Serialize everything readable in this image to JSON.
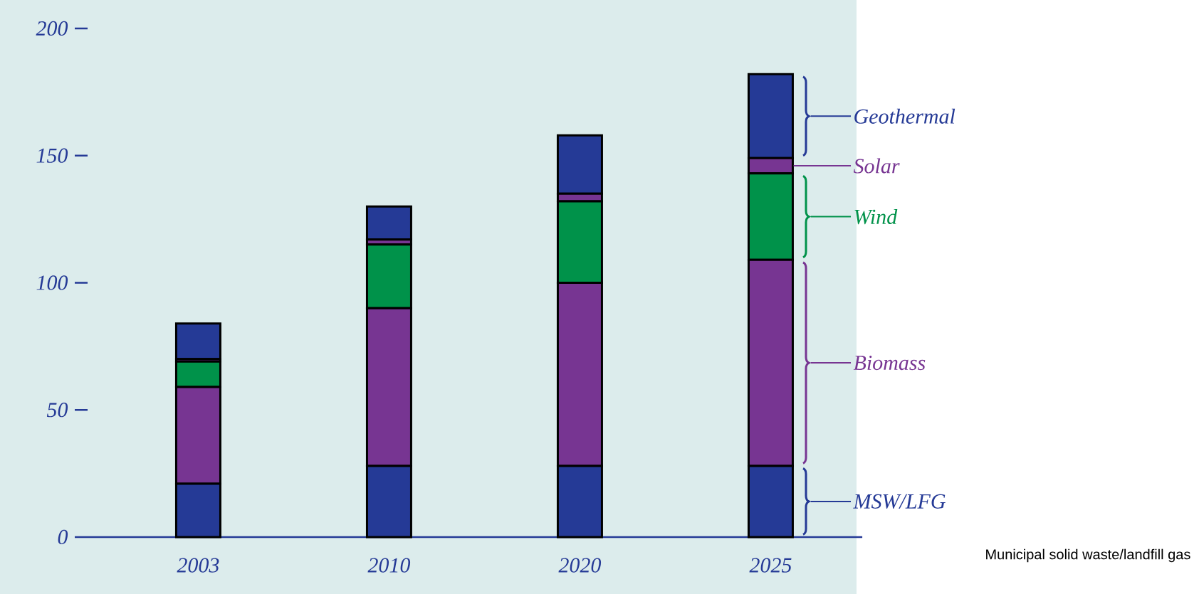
{
  "chart_data": {
    "type": "bar",
    "stacked": true,
    "categories": [
      "2003",
      "2010",
      "2020",
      "2025"
    ],
    "series": [
      {
        "name": "MSW/LFG",
        "color": "#253a96",
        "values": [
          21,
          28,
          28,
          28
        ]
      },
      {
        "name": "Biomass",
        "color": "#773592",
        "values": [
          38,
          62,
          72,
          81
        ]
      },
      {
        "name": "Wind",
        "color": "#00924a",
        "values": [
          10,
          25,
          32,
          34
        ]
      },
      {
        "name": "Solar",
        "color": "#773592",
        "values": [
          1,
          2,
          3,
          6
        ]
      },
      {
        "name": "Geothermal",
        "color": "#253a96",
        "values": [
          14,
          13,
          23,
          33
        ]
      }
    ],
    "legend": "right",
    "ylim": [
      0,
      200
    ],
    "yticks": [
      0,
      50,
      100,
      150,
      200
    ],
    "annotations": [
      "Municipal solid waste/landfill gas"
    ]
  }
}
